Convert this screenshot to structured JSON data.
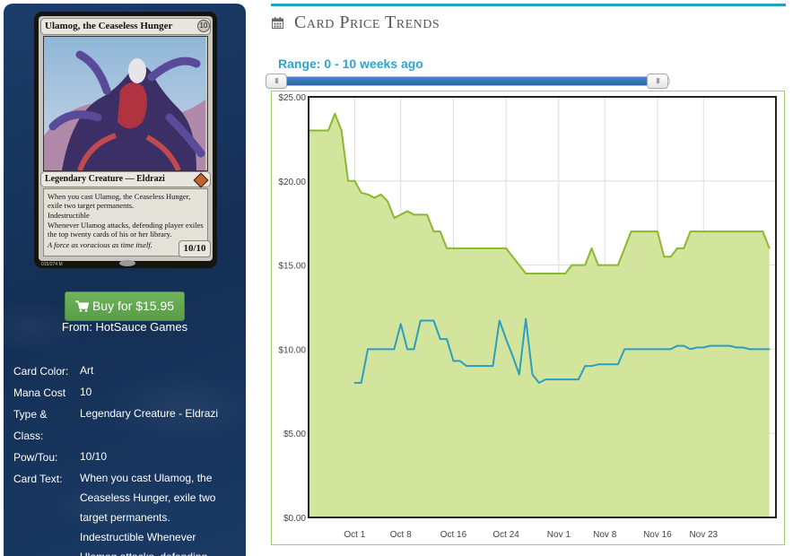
{
  "card": {
    "name": "Ulamog, the Ceaseless Hunger",
    "mana_cost": "10",
    "type_line": "Legendary Creature — Eldrazi",
    "rules_1": "When you cast Ulamog, the Ceaseless Hunger, exile two target permanents.",
    "rules_2": "Indestructible",
    "rules_3": "Whenever Ulamog attacks, defending player exiles the top twenty cards of his or her library.",
    "flavor": "A force as voracious as time itself.",
    "power_toughness": "10/10",
    "collector": "015/274 M"
  },
  "buy": {
    "label": "Buy for $15.95",
    "from": "From: HotSauce Games"
  },
  "attributes": [
    {
      "label": "Card Color:",
      "value": "Art"
    },
    {
      "label": "Mana Cost",
      "value": "10"
    },
    {
      "label": "Type & Class:",
      "value": "Legendary Creature - Eldrazi"
    },
    {
      "label": "Pow/Tou:",
      "value": "10/10"
    },
    {
      "label": "Card Text:",
      "value": "When you cast Ulamog, the Ceaseless Hunger, exile two target permanents. Indestructible Whenever Ulamog attacks, defending"
    }
  ],
  "panel": {
    "title": "Card Price Trends",
    "range_label": "Range: 0 - 10 weeks ago",
    "handle_glyph": "III"
  },
  "chart_data": {
    "type": "area",
    "title": "",
    "xlabel": "",
    "ylabel": "",
    "ylim": [
      0,
      25
    ],
    "yticks": [
      "$0.00",
      "$5.00",
      "$10.00",
      "$15.00",
      "$20.00",
      "$25.00"
    ],
    "ytick_values": [
      0,
      5,
      10,
      15,
      20,
      25
    ],
    "xlim": [
      0,
      71
    ],
    "xtick_labels": [
      "Oct 1",
      "Oct 8",
      "Oct 16",
      "Oct 24",
      "Nov 1",
      "Nov 8",
      "Nov 16",
      "Nov 23"
    ],
    "xtick_positions": [
      7,
      14,
      22,
      30,
      38,
      45,
      53,
      60
    ],
    "grid": true,
    "series": [
      {
        "color": "#8ab82e",
        "fill": "#d3e59c",
        "points": [
          [
            0,
            23
          ],
          [
            2,
            23
          ],
          [
            3,
            23
          ],
          [
            4,
            24
          ],
          [
            5,
            23
          ],
          [
            6,
            20
          ],
          [
            7,
            20
          ],
          [
            8,
            19.3
          ],
          [
            9,
            19.2
          ],
          [
            10,
            19
          ],
          [
            11,
            19.2
          ],
          [
            12,
            18.8
          ],
          [
            13,
            17.8
          ],
          [
            14,
            18
          ],
          [
            15,
            18.2
          ],
          [
            16,
            18
          ],
          [
            17,
            18
          ],
          [
            18,
            18
          ],
          [
            19,
            17
          ],
          [
            20,
            17
          ],
          [
            21,
            16
          ],
          [
            22,
            16
          ],
          [
            23,
            16
          ],
          [
            24,
            16
          ],
          [
            25,
            16
          ],
          [
            26,
            16
          ],
          [
            27,
            16
          ],
          [
            28,
            16
          ],
          [
            29,
            16
          ],
          [
            30,
            16
          ],
          [
            31,
            15.5
          ],
          [
            32,
            15
          ],
          [
            33,
            14.5
          ],
          [
            34,
            14.5
          ],
          [
            35,
            14.5
          ],
          [
            36,
            14.5
          ],
          [
            37,
            14.5
          ],
          [
            38,
            14.5
          ],
          [
            39,
            14.5
          ],
          [
            40,
            15
          ],
          [
            41,
            15
          ],
          [
            42,
            15
          ],
          [
            43,
            16
          ],
          [
            44,
            15
          ],
          [
            45,
            15
          ],
          [
            46,
            15
          ],
          [
            47,
            15
          ],
          [
            48,
            16
          ],
          [
            49,
            17
          ],
          [
            50,
            17
          ],
          [
            51,
            17
          ],
          [
            52,
            17
          ],
          [
            53,
            17
          ],
          [
            54,
            15.5
          ],
          [
            55,
            15.5
          ],
          [
            56,
            16
          ],
          [
            57,
            16
          ],
          [
            58,
            17
          ],
          [
            59,
            17
          ],
          [
            60,
            17
          ],
          [
            61,
            17
          ],
          [
            62,
            17
          ],
          [
            63,
            17
          ],
          [
            64,
            17
          ],
          [
            65,
            17
          ],
          [
            66,
            17
          ],
          [
            67,
            17
          ],
          [
            68,
            17
          ],
          [
            69,
            17
          ],
          [
            70,
            16
          ]
        ]
      },
      {
        "color": "#2a9fc0",
        "points": [
          [
            7,
            8
          ],
          [
            8,
            8
          ],
          [
            9,
            10
          ],
          [
            10,
            10
          ],
          [
            11,
            10
          ],
          [
            12,
            10
          ],
          [
            13,
            10
          ],
          [
            14,
            11.5
          ],
          [
            15,
            10
          ],
          [
            16,
            10
          ],
          [
            17,
            11.7
          ],
          [
            18,
            11.7
          ],
          [
            19,
            11.7
          ],
          [
            20,
            10.6
          ],
          [
            21,
            10.6
          ],
          [
            22,
            9.3
          ],
          [
            23,
            9.3
          ],
          [
            24,
            9
          ],
          [
            25,
            9
          ],
          [
            26,
            9
          ],
          [
            27,
            9
          ],
          [
            28,
            9
          ],
          [
            29,
            11.7
          ],
          [
            30,
            10.6
          ],
          [
            31,
            9.6
          ],
          [
            32,
            8.5
          ],
          [
            33,
            11.8
          ],
          [
            34,
            8.5
          ],
          [
            35,
            8
          ],
          [
            36,
            8.2
          ],
          [
            37,
            8.2
          ],
          [
            38,
            8.2
          ],
          [
            39,
            8.2
          ],
          [
            40,
            8.2
          ],
          [
            41,
            8.2
          ],
          [
            42,
            9
          ],
          [
            43,
            9
          ],
          [
            44,
            9.1
          ],
          [
            45,
            9.1
          ],
          [
            46,
            9.1
          ],
          [
            47,
            9.1
          ],
          [
            48,
            10
          ],
          [
            49,
            10
          ],
          [
            50,
            10
          ],
          [
            51,
            10
          ],
          [
            52,
            10
          ],
          [
            53,
            10
          ],
          [
            54,
            10
          ],
          [
            55,
            10
          ],
          [
            56,
            10.2
          ],
          [
            57,
            10.2
          ],
          [
            58,
            10
          ],
          [
            59,
            10.1
          ],
          [
            60,
            10.1
          ],
          [
            61,
            10.2
          ],
          [
            62,
            10.2
          ],
          [
            63,
            10.2
          ],
          [
            64,
            10.2
          ],
          [
            65,
            10.1
          ],
          [
            66,
            10.1
          ],
          [
            67,
            10
          ],
          [
            68,
            10
          ],
          [
            69,
            10
          ],
          [
            70,
            10
          ]
        ]
      }
    ]
  }
}
